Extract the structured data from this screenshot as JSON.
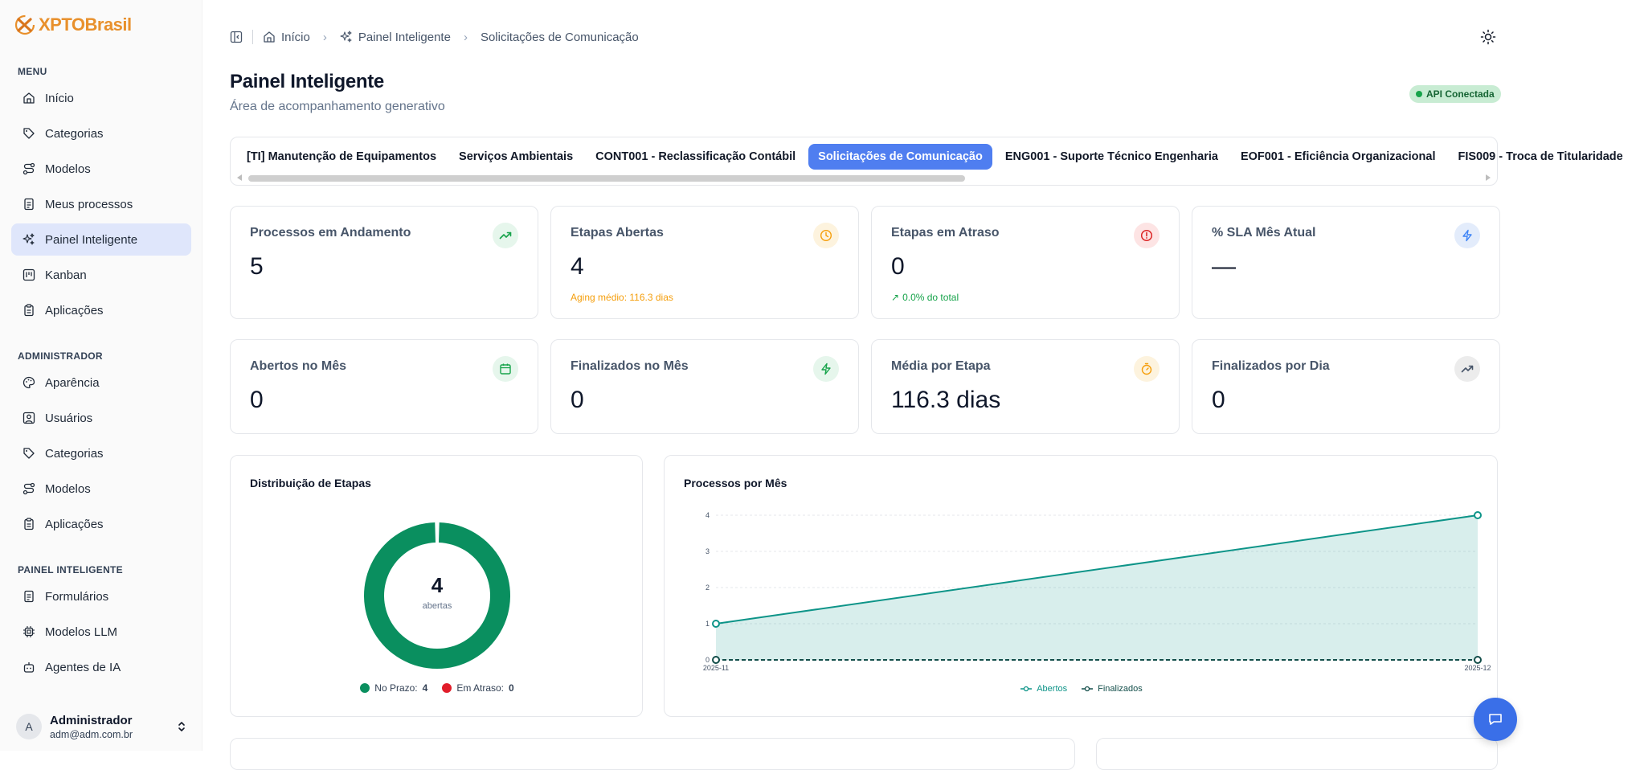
{
  "app": {
    "brand": "XPTOBrasil",
    "brand_color": "#e8902c"
  },
  "sidebar": {
    "sections": [
      {
        "title": "MENU",
        "items": [
          {
            "label": "Início",
            "icon": "home-icon"
          },
          {
            "label": "Categorias",
            "icon": "tag-icon"
          },
          {
            "label": "Modelos",
            "icon": "route-icon"
          },
          {
            "label": "Meus processos",
            "icon": "file-icon"
          },
          {
            "label": "Painel Inteligente",
            "icon": "sparkles-icon",
            "active": true
          },
          {
            "label": "Kanban",
            "icon": "kanban-icon"
          },
          {
            "label": "Aplicações",
            "icon": "clipboard-icon"
          }
        ]
      },
      {
        "title": "ADMINISTRADOR",
        "items": [
          {
            "label": "Aparência",
            "icon": "palette-icon"
          },
          {
            "label": "Usuários",
            "icon": "user-square-icon"
          },
          {
            "label": "Categorias",
            "icon": "tag-icon"
          },
          {
            "label": "Modelos",
            "icon": "route-icon"
          },
          {
            "label": "Aplicações",
            "icon": "clipboard-icon"
          }
        ]
      },
      {
        "title": "PAINEL INTELIGENTE",
        "items": [
          {
            "label": "Formulários",
            "icon": "file-icon"
          },
          {
            "label": "Modelos LLM",
            "icon": "cpu-icon"
          },
          {
            "label": "Agentes de IA",
            "icon": "bot-icon"
          }
        ]
      }
    ],
    "user": {
      "initial": "A",
      "name": "Administrador",
      "email": "adm@adm.com.br"
    }
  },
  "header": {
    "breadcrumb": [
      "Início",
      "Painel Inteligente",
      "Solicitações de Comunicação"
    ]
  },
  "page": {
    "title": "Painel Inteligente",
    "subtitle": "Área de acompanhamento generativo",
    "api_status": "API Conectada"
  },
  "tabs": [
    {
      "label": "[TI] Manutenção de Equipamentos"
    },
    {
      "label": "Serviços Ambientais"
    },
    {
      "label": "CONT001 - Reclassificação Contábil"
    },
    {
      "label": "Solicitações de Comunicação",
      "active": true
    },
    {
      "label": "ENG001 - Suporte Técnico Engenharia"
    },
    {
      "label": "EOF001 - Eficiência Organizacional"
    },
    {
      "label": "FIS009 - Troca de Titularidade"
    }
  ],
  "kpis": [
    {
      "title": "Processos em Andamento",
      "value": "5",
      "icon": "trending-up-icon",
      "icon_color": "#16a34a",
      "icon_bg": "#e6f6ec"
    },
    {
      "title": "Etapas Abertas",
      "value": "4",
      "note": "Aging médio: 116.3 dias",
      "note_color": "#f59e0b",
      "icon": "clock-icon",
      "icon_color": "#f59e0b",
      "icon_bg": "#fdf3de"
    },
    {
      "title": "Etapas em Atraso",
      "value": "0",
      "note": "0.0% do total",
      "note_color": "#16a34a",
      "icon": "alert-circle-icon",
      "icon_color": "#dc2626",
      "icon_bg": "#fde4e4"
    },
    {
      "title": "% SLA Mês Atual",
      "value": "—",
      "icon": "zap-icon",
      "icon_color": "#3b82f6",
      "icon_bg": "#e3ecfb"
    },
    {
      "title": "Abertos no Mês",
      "value": "0",
      "icon": "calendar-icon",
      "icon_color": "#16a34a",
      "icon_bg": "#e6f6ec"
    },
    {
      "title": "Finalizados no Mês",
      "value": "0",
      "icon": "zap-icon",
      "icon_color": "#16a34a",
      "icon_bg": "#e6f6ec"
    },
    {
      "title": "Média por Etapa",
      "value": "116.3 dias",
      "icon": "timer-icon",
      "icon_color": "#f59e0b",
      "icon_bg": "#fdf3de"
    },
    {
      "title": "Finalizados por Dia",
      "value": "0",
      "icon": "trending-up-icon",
      "icon_color": "#475569",
      "icon_bg": "#ececec"
    }
  ],
  "chart_data": [
    {
      "type": "pie",
      "title": "Distribuição de Etapas",
      "center_value": "4",
      "center_label": "abertas",
      "slices": [
        {
          "name": "No Prazo",
          "value": 4,
          "color": "#0a8f5f"
        },
        {
          "name": "Em Atraso",
          "value": 0,
          "color": "#e11d2a"
        }
      ],
      "legend_position": "bottom"
    },
    {
      "type": "area",
      "title": "Processos por Mês",
      "x": [
        "2025-11",
        "2025-12"
      ],
      "series": [
        {
          "name": "Abertos",
          "values": [
            1,
            4
          ],
          "color": "#0d9488"
        },
        {
          "name": "Finalizados",
          "values": [
            0,
            0
          ],
          "color": "#134e4a"
        }
      ],
      "ylim": [
        0,
        4
      ],
      "yticks": [
        "0",
        "1",
        "2",
        "3",
        "4"
      ],
      "grid": true,
      "legend_position": "bottom"
    }
  ]
}
